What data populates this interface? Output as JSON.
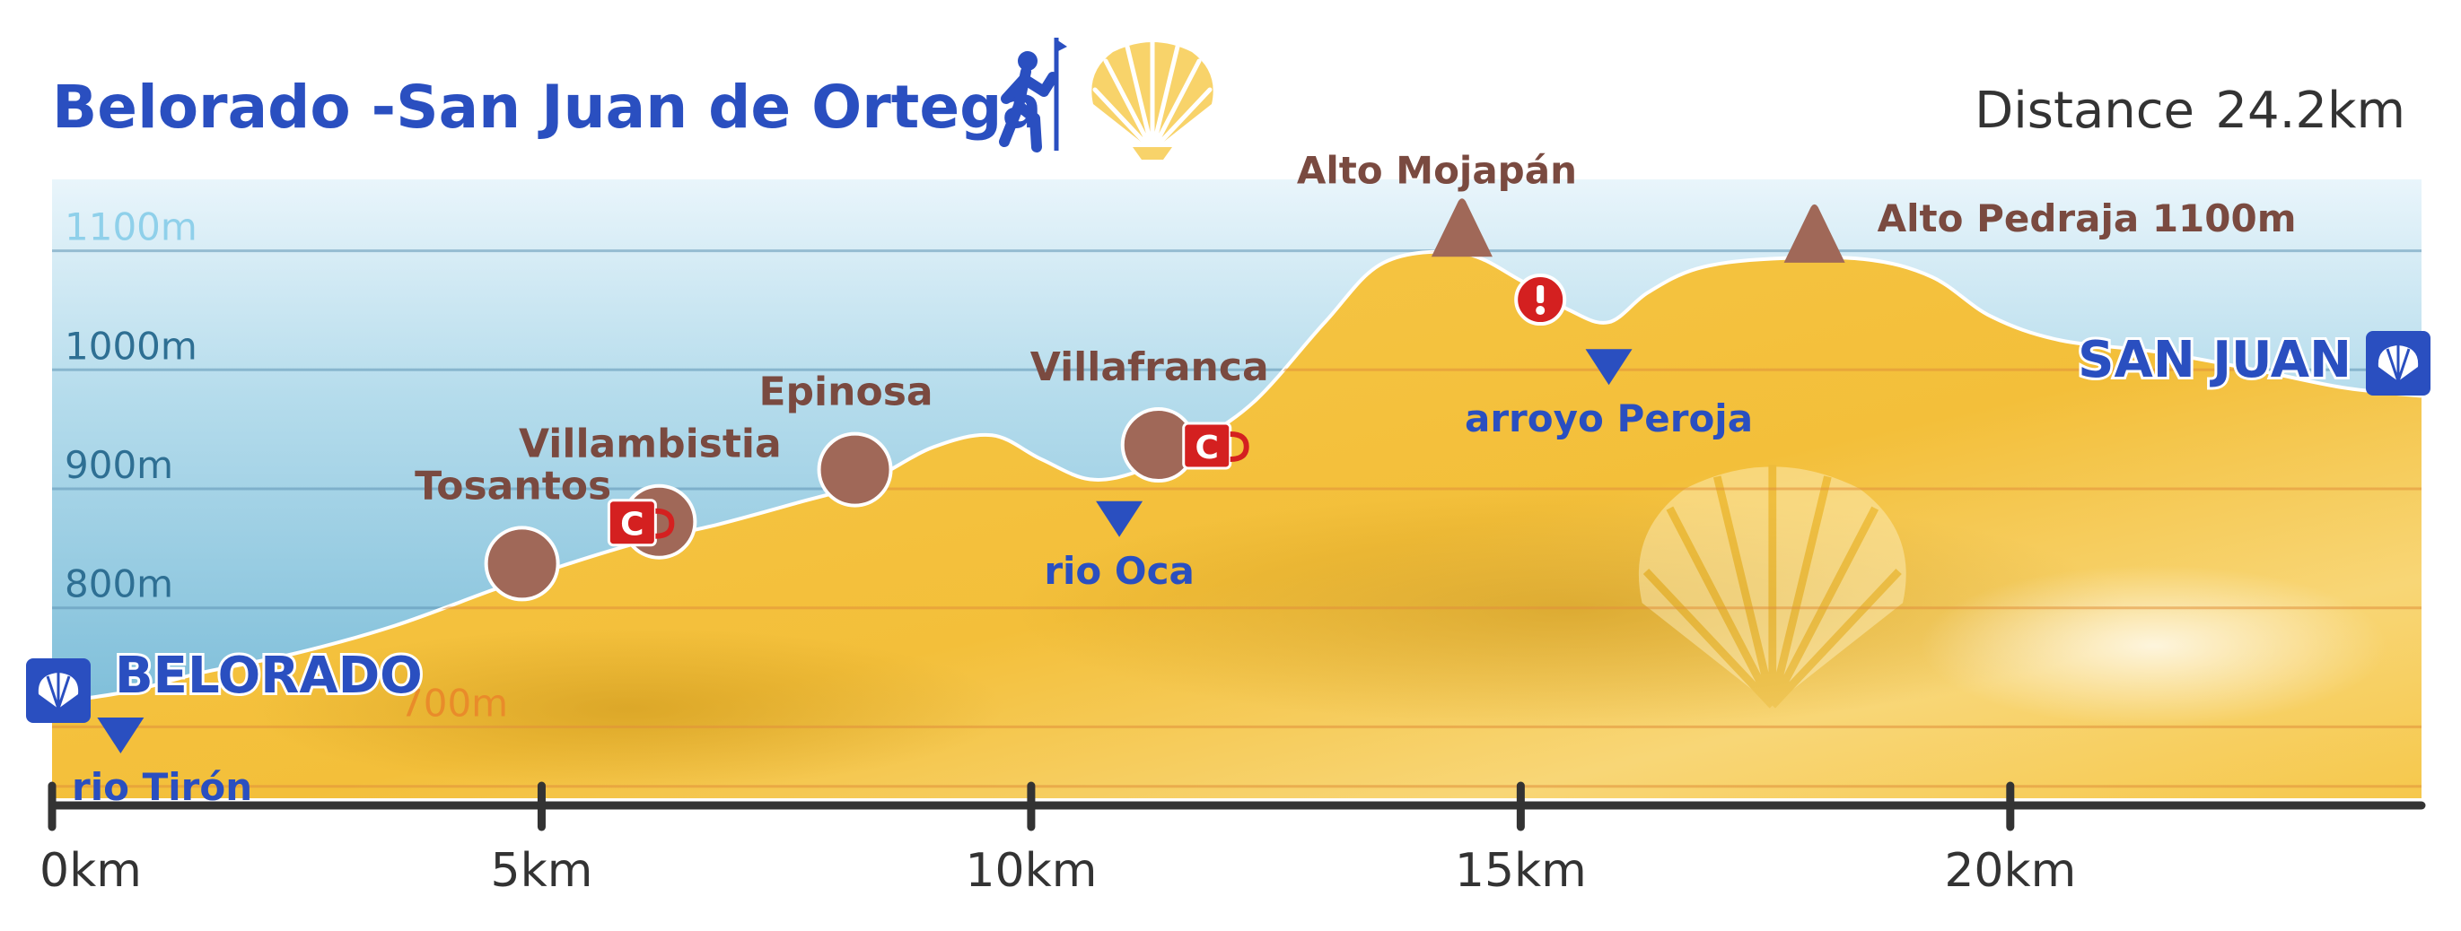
{
  "title": "Belorado -San Juan de Ortega",
  "distance": {
    "label": "Distance",
    "value": "24.2km"
  },
  "colors": {
    "title": "#2a4fc0",
    "place": "#7a4a40",
    "river": "#2a4fc0",
    "terrain": "#f6c64a",
    "sky": "#7fc2dc",
    "axis": "#333333",
    "cafe": "#d42020"
  },
  "icons": [
    "hiker-icon",
    "scallop-shell-icon",
    "cafe-icon",
    "warning-icon",
    "summit-icon",
    "river-icon"
  ],
  "chart_data": {
    "type": "area",
    "xlabel": "",
    "ylabel": "",
    "xlim": [
      0,
      24.2
    ],
    "ylim": [
      640,
      1160
    ],
    "x_ticks": [
      0,
      5,
      10,
      15,
      20
    ],
    "x_tick_labels": [
      "0km",
      "5km",
      "10km",
      "15km",
      "20km"
    ],
    "y_ticks": [
      700,
      800,
      900,
      1000,
      1100
    ],
    "y_tick_labels": [
      "700m",
      "800m",
      "900m",
      "1000m",
      "1100m"
    ],
    "grid": true,
    "series": [
      {
        "x": [
          0,
          0.8,
          1.5,
          2.5,
          3.5,
          4.5,
          5.2,
          6,
          6.8,
          7.6,
          8.3,
          9,
          9.6,
          10.1,
          10.6,
          11.1,
          11.7,
          12.3,
          13,
          13.6,
          14.4,
          15,
          15.5,
          15.9,
          16.3,
          16.8,
          17.5,
          18.5,
          19.2,
          19.8,
          20.5,
          21.5,
          22.5,
          23.4,
          24.2
        ],
        "y": [
          720,
          730,
          745,
          762,
          785,
          815,
          835,
          855,
          870,
          888,
          905,
          935,
          945,
          925,
          908,
          915,
          940,
          975,
          1040,
          1090,
          1098,
          1075,
          1050,
          1040,
          1065,
          1085,
          1093,
          1093,
          1078,
          1045,
          1025,
          1015,
          1000,
          985,
          978
        ]
      }
    ],
    "places": [
      {
        "name": "BELORADO",
        "x": 0,
        "kind": "town-end"
      },
      {
        "name": "Tosantos",
        "x": 4.8,
        "kind": "village"
      },
      {
        "name": "Villambistia",
        "x": 6.2,
        "kind": "village-cafe"
      },
      {
        "name": "Epinosa",
        "x": 8.2,
        "kind": "village"
      },
      {
        "name": "Villafranca",
        "x": 11.3,
        "kind": "village-cafe"
      },
      {
        "name": "San Juan",
        "x": 24.2,
        "kind": "town-end",
        "display": "SAN JUAN"
      }
    ],
    "summits": [
      {
        "name": "Alto Mojapán",
        "x": 14.4
      },
      {
        "name": "Alto Pedraja 1100m",
        "x": 18
      }
    ],
    "rivers": [
      {
        "name": "rio Tirón",
        "x": 0.7
      },
      {
        "name": "rio Oca",
        "x": 10.9
      },
      {
        "name": "arroyo Peroja",
        "x": 15.9
      }
    ],
    "warnings": [
      {
        "x": 15.2
      }
    ],
    "cafe_symbol": "C"
  }
}
